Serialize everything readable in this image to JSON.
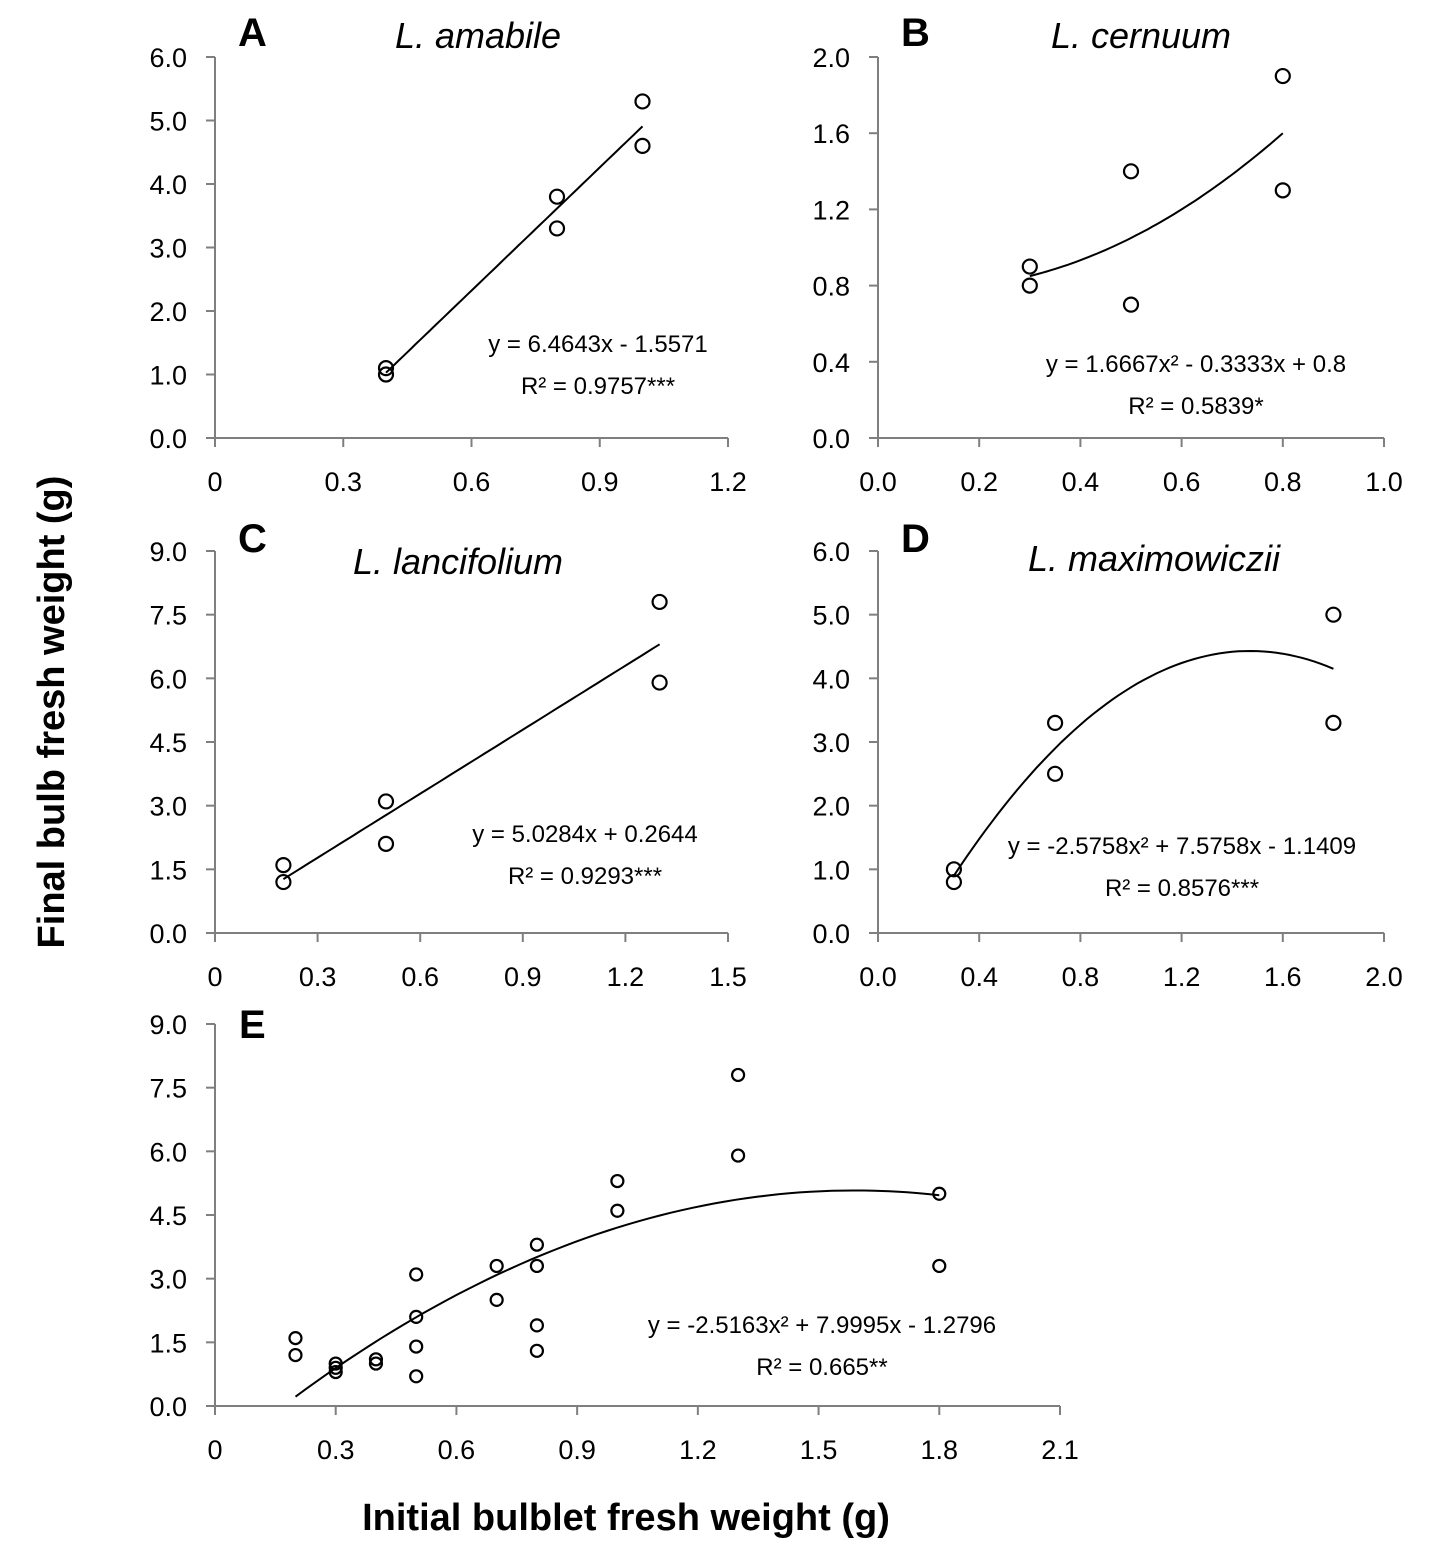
{
  "figure": {
    "ylabel": "Final bulb fresh weight (g)",
    "xlabel": "Initial bulblet fresh weight (g)"
  },
  "chart_data": [
    {
      "id": "A",
      "type": "scatter",
      "letter": "A",
      "title": "L. amabile",
      "xlim": [
        0,
        1.2
      ],
      "ylim": [
        0,
        6
      ],
      "xticks": [
        "0",
        "0.3",
        "0.6",
        "0.9",
        "1.2"
      ],
      "yticks": [
        "0.0",
        "1.0",
        "2.0",
        "3.0",
        "4.0",
        "5.0",
        "6.0"
      ],
      "points": [
        [
          0.4,
          1.0
        ],
        [
          0.4,
          1.1
        ],
        [
          0.8,
          3.3
        ],
        [
          0.8,
          3.8
        ],
        [
          1.0,
          4.6
        ],
        [
          1.0,
          5.3
        ]
      ],
      "fit": {
        "coef": [
          6.4643,
          -1.5571
        ],
        "x_range": [
          0.4,
          1.0
        ]
      },
      "equation": "y = 6.4643x - 1.5571",
      "r2_label": "R² = 0.9757***"
    },
    {
      "id": "B",
      "type": "scatter",
      "letter": "B",
      "title": "L. cernuum",
      "xlim": [
        0,
        1.0
      ],
      "ylim": [
        0,
        2.0
      ],
      "xticks": [
        "0.0",
        "0.2",
        "0.4",
        "0.6",
        "0.8",
        "1.0"
      ],
      "yticks": [
        "0.0",
        "0.4",
        "0.8",
        "1.2",
        "1.6",
        "2.0"
      ],
      "points": [
        [
          0.3,
          0.8
        ],
        [
          0.3,
          0.9
        ],
        [
          0.5,
          0.7
        ],
        [
          0.5,
          1.4
        ],
        [
          0.8,
          1.3
        ],
        [
          0.8,
          1.9
        ]
      ],
      "fit": {
        "coef": [
          1.6667,
          -0.3333,
          0.8
        ],
        "x_range": [
          0.3,
          0.8
        ]
      },
      "equation": "y = 1.6667x² - 0.3333x + 0.8",
      "r2_label": "R² = 0.5839*"
    },
    {
      "id": "C",
      "type": "scatter",
      "letter": "C",
      "title": "L. lancifolium",
      "xlim": [
        0,
        1.5
      ],
      "ylim": [
        0,
        9.0
      ],
      "xticks": [
        "0",
        "0.3",
        "0.6",
        "0.9",
        "1.2",
        "1.5"
      ],
      "yticks": [
        "0.0",
        "1.5",
        "3.0",
        "4.5",
        "6.0",
        "7.5",
        "9.0"
      ],
      "points": [
        [
          0.2,
          1.2
        ],
        [
          0.2,
          1.6
        ],
        [
          0.5,
          2.1
        ],
        [
          0.5,
          3.1
        ],
        [
          1.3,
          5.9
        ],
        [
          1.3,
          7.8
        ]
      ],
      "fit": {
        "coef": [
          5.0284,
          0.2644
        ],
        "x_range": [
          0.2,
          1.3
        ]
      },
      "equation": "y = 5.0284x + 0.2644",
      "r2_label": "R² = 0.9293***"
    },
    {
      "id": "D",
      "type": "scatter",
      "letter": "D",
      "title": "L. maximowiczii",
      "xlim": [
        0,
        2.0
      ],
      "ylim": [
        0,
        6.0
      ],
      "xticks": [
        "0.0",
        "0.4",
        "0.8",
        "1.2",
        "1.6",
        "2.0"
      ],
      "yticks": [
        "0.0",
        "1.0",
        "2.0",
        "3.0",
        "4.0",
        "5.0",
        "6.0"
      ],
      "points": [
        [
          0.3,
          0.8
        ],
        [
          0.3,
          1.0
        ],
        [
          0.7,
          2.5
        ],
        [
          0.7,
          3.3
        ],
        [
          1.8,
          3.3
        ],
        [
          1.8,
          5.0
        ]
      ],
      "fit": {
        "coef": [
          -2.5758,
          7.5758,
          -1.1409
        ],
        "x_range": [
          0.3,
          1.8
        ]
      },
      "equation": "y = -2.5758x² + 7.5758x - 1.1409",
      "r2_label": "R² = 0.8576***"
    },
    {
      "id": "E",
      "type": "scatter",
      "letter": "E",
      "title": "",
      "xlim": [
        0,
        2.1
      ],
      "ylim": [
        0,
        9.0
      ],
      "xticks": [
        "0",
        "0.3",
        "0.6",
        "0.9",
        "1.2",
        "1.5",
        "1.8",
        "2.1"
      ],
      "yticks": [
        "0.0",
        "1.5",
        "3.0",
        "4.5",
        "6.0",
        "7.5",
        "9.0"
      ],
      "points": [
        [
          0.2,
          1.2
        ],
        [
          0.2,
          1.6
        ],
        [
          0.3,
          0.8
        ],
        [
          0.3,
          0.9
        ],
        [
          0.3,
          1.0
        ],
        [
          0.4,
          1.0
        ],
        [
          0.4,
          1.1
        ],
        [
          0.5,
          0.7
        ],
        [
          0.5,
          1.4
        ],
        [
          0.5,
          2.1
        ],
        [
          0.5,
          3.1
        ],
        [
          0.7,
          2.5
        ],
        [
          0.7,
          3.3
        ],
        [
          0.8,
          1.3
        ],
        [
          0.8,
          1.9
        ],
        [
          0.8,
          3.3
        ],
        [
          0.8,
          3.8
        ],
        [
          1.0,
          4.6
        ],
        [
          1.0,
          5.3
        ],
        [
          1.3,
          5.9
        ],
        [
          1.3,
          7.8
        ],
        [
          1.8,
          3.3
        ],
        [
          1.8,
          5.0
        ]
      ],
      "fit": {
        "coef": [
          -2.5163,
          7.9995,
          -1.2796
        ],
        "x_range": [
          0.2,
          1.8
        ]
      },
      "equation": "y = -2.5163x² + 7.9995x - 1.2796",
      "r2_label": "R² = 0.665**"
    }
  ]
}
